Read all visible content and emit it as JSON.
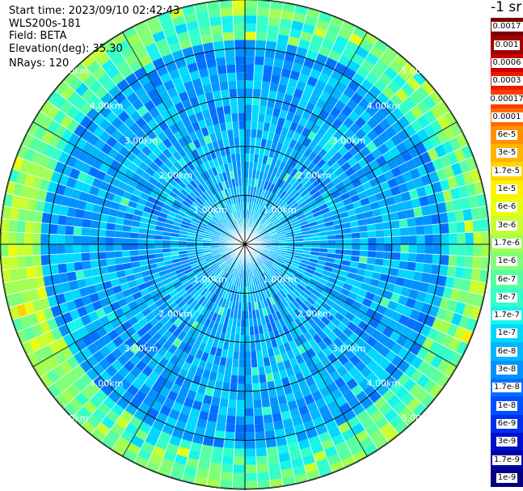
{
  "header": {
    "start_time": "Start time: 2023/09/10 02:42:43",
    "instrument": "WLS200s-181",
    "field": "Field: BETA",
    "elevation": "Elevation(deg): 35.30",
    "nrays": "NRays: 120"
  },
  "chart_data": {
    "type": "heatmap",
    "projection": "polar-ppi",
    "field": "BETA",
    "units": "-1 sr",
    "colorbar_title": "-1 sr",
    "nrays": 120,
    "elevation_deg": 35.3,
    "start_time": "2023/09/10 02:42:43",
    "range_rings_km": [
      1.0,
      2.0,
      3.0,
      4.0,
      5.0
    ],
    "range_ring_labels": [
      "1.00km",
      "2.00km",
      "3.00km",
      "4.00km",
      "5.00km"
    ],
    "max_range_km": 5.0,
    "azimuth_lines_deg": [
      0,
      30,
      60,
      90,
      120,
      150,
      180,
      210,
      240,
      270,
      300,
      330
    ],
    "colorbar_levels": [
      "0.0017",
      "0.001",
      "0.0006",
      "0.0003",
      "0.00017",
      "0.0001",
      "6e-5",
      "3e-5",
      "1.7e-5",
      "1e-5",
      "6e-6",
      "3e-6",
      "1.7e-6",
      "1e-6",
      "6e-7",
      "3e-7",
      "1.7e-7",
      "1e-7",
      "6e-8",
      "3e-8",
      "1.7e-8",
      "1e-8",
      "6e-9",
      "3e-9",
      "1.7e-9",
      "1e-9"
    ],
    "colorbar_colors": [
      "#7a0000",
      "#a00000",
      "#c80000",
      "#ee1a00",
      "#ff3c00",
      "#ff6a00",
      "#ff9000",
      "#ffb400",
      "#ffd400",
      "#fff000",
      "#e8ff12",
      "#c8ff30",
      "#a2ff54",
      "#80ff78",
      "#58ffa2",
      "#34ffc8",
      "#18f4ea",
      "#00d8ff",
      "#00b6ff",
      "#0092ff",
      "#0070ff",
      "#0050ff",
      "#0030ee",
      "#0010cc",
      "#0000a8",
      "#000080"
    ],
    "typical_background": "1e-8 to 3e-8",
    "notable_features": [
      "yellow-green arc (about 1e-5 to 3e-6) near 5 km range, azimuth roughly 230-290 deg",
      "cyan/green outer ring near 4.5-5 km range"
    ]
  }
}
